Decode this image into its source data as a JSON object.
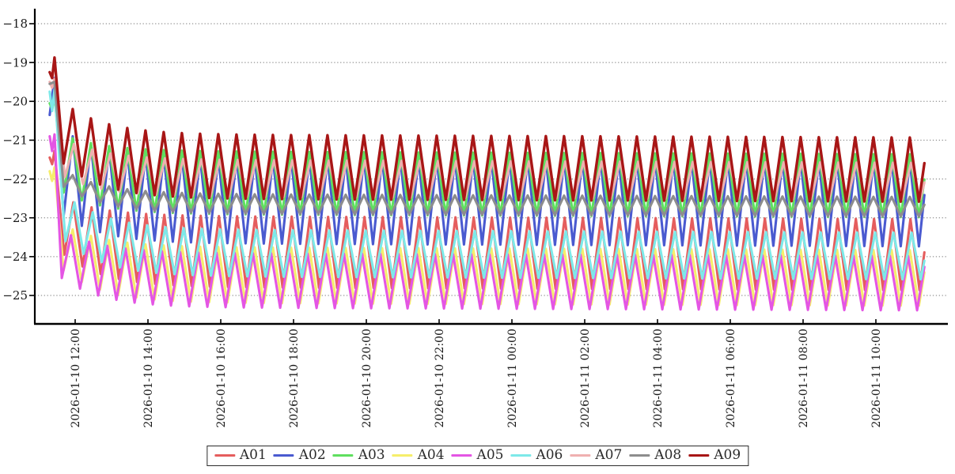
{
  "figure": {
    "background": "#ffffff",
    "title": ""
  },
  "axes": {
    "ytick_labels": [
      "−18",
      "−19",
      "−20",
      "−21",
      "−22",
      "−23",
      "−24",
      "−25"
    ],
    "ytick_values": [
      -18,
      -19,
      -20,
      -21,
      -22,
      -23,
      -24,
      -25
    ],
    "xtick_labels": [
      "2026-01-10 12:00",
      "2026-01-10 14:00",
      "2026-01-10 16:00",
      "2026-01-10 18:00",
      "2026-01-10 20:00",
      "2026-01-10 22:00",
      "2026-01-11 00:00",
      "2026-01-11 02:00",
      "2026-01-11 04:00",
      "2026-01-11 06:00",
      "2026-01-11 08:00",
      "2026-01-11 10:00"
    ],
    "spine_color": "#000000",
    "grid_color": "#7a7a7a",
    "tick_label_color": "#1a1a1a"
  },
  "chart_data": {
    "type": "line",
    "title": "",
    "xlabel": "",
    "ylabel": "",
    "ylim": [
      -25.72,
      -17.6
    ],
    "grid": "dotted-horizontal",
    "legend_position": "bottom-center",
    "x_range": [
      "2026-01-10 11:18",
      "2026-01-11 11:20"
    ],
    "cycle_minutes": 30,
    "waveform": {
      "comment": "times in minutes relative to 2026-01-10 12:00; each series starts high, spikes, plunges, then settles into 30-min sawtooth oscillation between steady_peak and steady_trough",
      "start_time_min": -42,
      "dip_time_min": -38,
      "spike_time_min": -34,
      "first_trough_time_min": -19,
      "first_peak_time_min": -4,
      "cycle_min": 30,
      "end_time_min": 1400,
      "settle_tau_cycles": 2.2,
      "late_drift_per_min": -6e-05
    },
    "series": [
      {
        "name": "A01",
        "color": "#e55d5d",
        "width": 3.1,
        "start": -21.45,
        "dip": -21.62,
        "spike": -21.28,
        "first_peak": -22.6,
        "first_trough": -23.95,
        "steady_peak": -22.95,
        "steady_trough": -24.78,
        "phase_min": 1
      },
      {
        "name": "A02",
        "color": "#4a5ad0",
        "width": 3.1,
        "start": -20.35,
        "dip": null,
        "spike": -19.4,
        "first_peak": -20.9,
        "first_trough": -22.95,
        "steady_peak": -21.45,
        "steady_trough": -23.65,
        "phase_min": 0
      },
      {
        "name": "A03",
        "color": "#5fdf5f",
        "width": 3.1,
        "start": -20.05,
        "dip": -20.2,
        "spike": -19.85,
        "first_peak": -20.95,
        "first_trough": -22.35,
        "steady_peak": -21.28,
        "steady_trough": -22.9,
        "phase_min": 0
      },
      {
        "name": "A04",
        "color": "#f6ee6b",
        "width": 3.1,
        "start": -21.8,
        "dip": -22.05,
        "spike": -21.7,
        "first_peak": -23.3,
        "first_trough": -24.35,
        "steady_peak": -23.75,
        "steady_trough": -25.18,
        "phase_min": 0
      },
      {
        "name": "A05",
        "color": "#e455e4",
        "width": 3.1,
        "start": -20.9,
        "dip": -21.28,
        "spike": -20.85,
        "first_peak": -23.45,
        "first_trough": -24.55,
        "steady_peak": -23.9,
        "steady_trough": -25.3,
        "phase_min": -3
      },
      {
        "name": "A06",
        "color": "#7de9e9",
        "width": 3.1,
        "start": -19.75,
        "dip": -20.25,
        "spike": -19.7,
        "first_peak": -22.6,
        "first_trough": -23.6,
        "steady_peak": -23.3,
        "steady_trough": -24.5,
        "phase_min": 3
      },
      {
        "name": "A07",
        "color": "#efb0b0",
        "width": 3.1,
        "start": -19.5,
        "dip": -19.65,
        "spike": -19.42,
        "first_peak": -21.1,
        "first_trough": -21.95,
        "steady_peak": -21.5,
        "steady_trough": -22.45,
        "phase_min": 2
      },
      {
        "name": "A08",
        "color": "#8d8d8d",
        "width": 3.1,
        "start": -19.55,
        "dip": null,
        "spike": -19.5,
        "first_peak": -21.9,
        "first_trough": -22.2,
        "steady_peak": -22.38,
        "steady_trough": -22.88,
        "phase_min": 0
      },
      {
        "name": "A09",
        "color": "#a81616",
        "width": 3.4,
        "start": -19.25,
        "dip": -19.4,
        "spike": -18.87,
        "first_peak": -20.2,
        "first_trough": -21.6,
        "steady_peak": -20.85,
        "steady_trough": -22.5,
        "phase_min": 0
      }
    ]
  }
}
